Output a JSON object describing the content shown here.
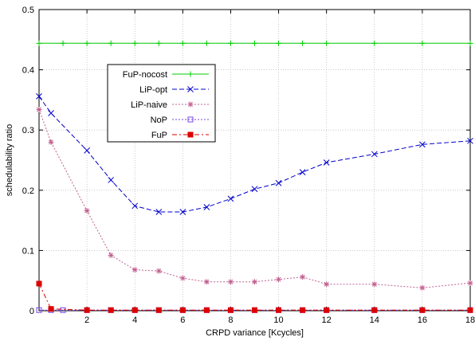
{
  "chart_data": {
    "type": "line",
    "title": "",
    "xlabel": "CRPD variance [Kcycles]",
    "ylabel": "schedulability ratio",
    "xlim": [
      0,
      18
    ],
    "ylim": [
      0,
      0.5
    ],
    "xticks": [
      2,
      4,
      6,
      8,
      10,
      12,
      14,
      16,
      18
    ],
    "xtick_labels": [
      "2",
      "4",
      "6",
      "8",
      "10",
      "12",
      "14",
      "16",
      "18"
    ],
    "yticks": [
      0,
      0.1,
      0.2,
      0.3,
      0.4,
      0.5
    ],
    "ytick_labels": [
      "0",
      "0.1",
      "0.2",
      "0.3",
      "0.4",
      "0.5"
    ],
    "grid": true,
    "legend_position": "upper-left",
    "series": [
      {
        "name": "FuP-nocost",
        "color": "#00cc00",
        "marker": "plus",
        "dash": "solid",
        "x": [
          0,
          1,
          2,
          3,
          4,
          5,
          6,
          7,
          8,
          9,
          10,
          11,
          12,
          14,
          16,
          18
        ],
        "y": [
          0.444,
          0.444,
          0.444,
          0.444,
          0.444,
          0.444,
          0.444,
          0.444,
          0.444,
          0.444,
          0.444,
          0.444,
          0.444,
          0.444,
          0.444,
          0.444
        ]
      },
      {
        "name": "LiP-opt",
        "color": "#0000cc",
        "marker": "x",
        "dash": "dashed",
        "x": [
          0,
          0.5,
          2,
          3,
          4,
          5,
          6,
          7,
          8,
          9,
          10,
          11,
          12,
          14,
          16,
          18
        ],
        "y": [
          0.356,
          0.328,
          0.266,
          0.217,
          0.174,
          0.164,
          0.164,
          0.172,
          0.186,
          0.202,
          0.212,
          0.23,
          0.246,
          0.26,
          0.276,
          0.282
        ]
      },
      {
        "name": "LiP-naive",
        "color": "#c06090",
        "marker": "star",
        "dash": "dotted",
        "x": [
          0,
          0.5,
          2,
          3,
          4,
          5,
          6,
          7,
          8,
          9,
          10,
          11,
          12,
          14,
          16,
          18
        ],
        "y": [
          0.334,
          0.28,
          0.166,
          0.092,
          0.068,
          0.066,
          0.054,
          0.048,
          0.048,
          0.048,
          0.052,
          0.056,
          0.044,
          0.044,
          0.038,
          0.046
        ]
      },
      {
        "name": "NoP",
        "color": "#7744ee",
        "marker": "square-open",
        "dash": "dotted",
        "x": [
          0,
          0.5,
          1,
          2,
          3,
          4,
          5,
          6,
          7,
          8,
          9,
          10,
          11,
          12,
          14,
          16,
          18
        ],
        "y": [
          0.001,
          0.001,
          0.001,
          0.001,
          0.001,
          0.001,
          0.001,
          0.001,
          0.001,
          0.001,
          0.001,
          0.001,
          0.001,
          0.001,
          0.001,
          0.001,
          0.001
        ]
      },
      {
        "name": "FuP",
        "color": "#dd0000",
        "marker": "square-filled",
        "dash": "dashdot",
        "x": [
          0,
          0.5,
          2,
          3,
          4,
          5,
          6,
          7,
          8,
          9,
          10,
          11,
          12,
          14,
          16,
          18
        ],
        "y": [
          0.045,
          0.003,
          0.001,
          0.001,
          0.001,
          0.001,
          0.001,
          0.001,
          0.001,
          0.001,
          0.001,
          0.001,
          0.001,
          0.001,
          0.001,
          0.001
        ]
      }
    ]
  }
}
